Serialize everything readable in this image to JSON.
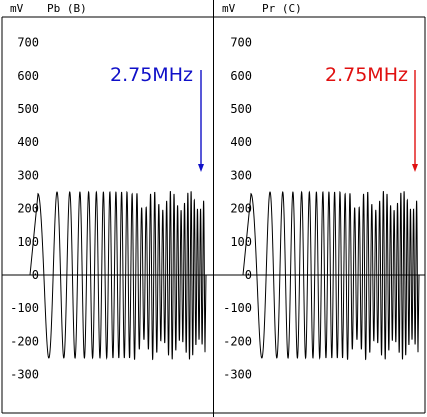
{
  "chart_data": [
    {
      "type": "line",
      "unit_label": "mV",
      "title": "Pb (B)",
      "ylim": [
        -380,
        760
      ],
      "yticks": [
        -300,
        -200,
        -100,
        0,
        100,
        200,
        300,
        400,
        500,
        600,
        700
      ],
      "ytick_labels": [
        "-300",
        "-200",
        "-100",
        "0",
        "100",
        "200",
        "300",
        "400",
        "500",
        "600",
        "700"
      ],
      "grid": false,
      "series": [
        {
          "signal": "multiburst sweep",
          "color": "#000000",
          "swing_mv": [
            -250,
            250
          ],
          "start_frequency_mhz": 0,
          "end_frequency_mhz": 2.75
        }
      ],
      "annotation": {
        "text": "2.75MHz",
        "color": "#1010c8",
        "points_to": "end of sweep"
      }
    },
    {
      "type": "line",
      "unit_label": "mV",
      "title": "Pr (C)",
      "ylim": [
        -380,
        760
      ],
      "yticks": [
        -300,
        -200,
        -100,
        0,
        100,
        200,
        300,
        400,
        500,
        600,
        700
      ],
      "ytick_labels": [
        "-300",
        "-200",
        "-100",
        "0",
        "100",
        "200",
        "300",
        "400",
        "500",
        "600",
        "700"
      ],
      "grid": false,
      "series": [
        {
          "signal": "multiburst sweep",
          "color": "#000000",
          "swing_mv": [
            -250,
            250
          ],
          "start_frequency_mhz": 0,
          "end_frequency_mhz": 2.75
        }
      ],
      "annotation": {
        "text": "2.75MHz",
        "color": "#e01010",
        "points_to": "end of sweep"
      }
    }
  ]
}
